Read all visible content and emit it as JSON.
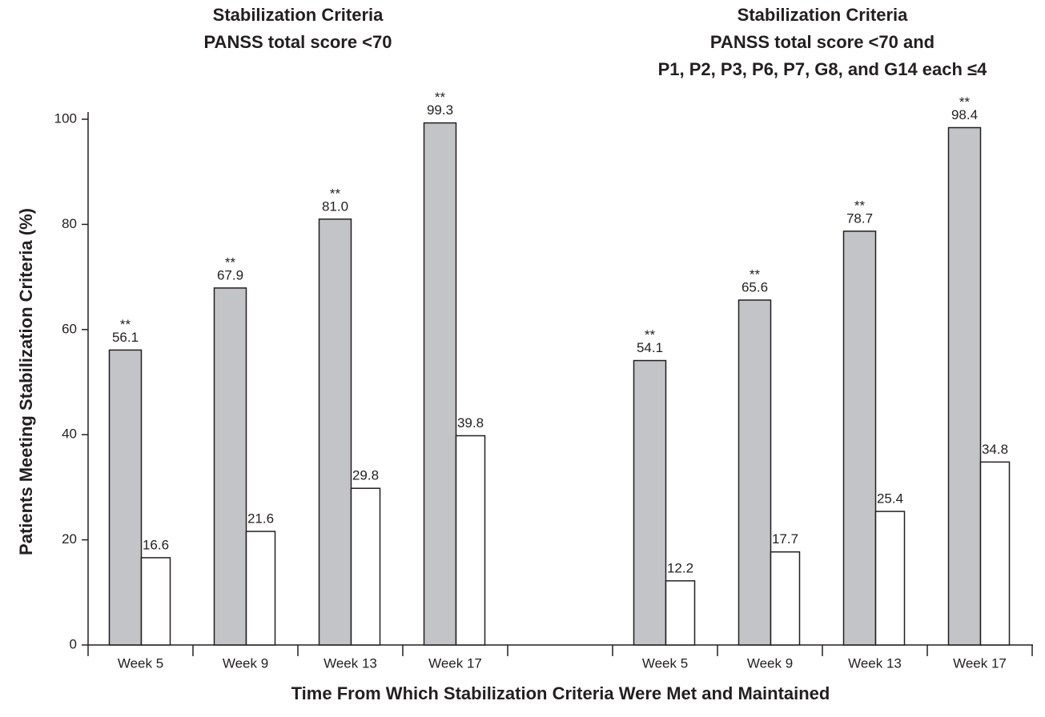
{
  "chart_data": {
    "type": "bar",
    "ylabel": "Patients Meeting Stabilization Criteria (%)",
    "xlabel": "Time From Which Stabilization Criteria Were Met and Maintained",
    "ylim": [
      0,
      100
    ],
    "yticks": [
      0,
      20,
      40,
      60,
      80,
      100
    ],
    "panels": [
      {
        "title": [
          "Stabilization Criteria",
          "PANSS total score <70"
        ],
        "categories": [
          "Week 5",
          "Week 9",
          "Week 13",
          "Week 17"
        ],
        "series": [
          {
            "color": "#c3c4c8",
            "values": [
              56.1,
              67.9,
              81.0,
              99.3
            ],
            "value_labels": [
              "56.1",
              "67.9",
              "81.0",
              "99.3"
            ],
            "annotations": [
              "**",
              "**",
              "**",
              "**"
            ]
          },
          {
            "color": "#ffffff",
            "values": [
              16.6,
              21.6,
              29.8,
              39.8
            ],
            "value_labels": [
              "16.6",
              "21.6",
              "29.8",
              "39.8"
            ]
          }
        ]
      },
      {
        "title": [
          "Stabilization Criteria",
          "PANSS total score <70 and",
          "P1, P2, P3, P6, P7, G8, and G14 each ≤4"
        ],
        "categories": [
          "Week 5",
          "Week 9",
          "Week 13",
          "Week 17"
        ],
        "series": [
          {
            "color": "#c3c4c8",
            "values": [
              54.1,
              65.6,
              78.7,
              98.4
            ],
            "value_labels": [
              "54.1",
              "65.6",
              "78.7",
              "98.4"
            ],
            "annotations": [
              "**",
              "**",
              "**",
              "**"
            ]
          },
          {
            "color": "#ffffff",
            "values": [
              12.2,
              17.7,
              25.4,
              34.8
            ],
            "value_labels": [
              "12.2",
              "17.7",
              "25.4",
              "34.8"
            ]
          }
        ]
      }
    ]
  }
}
